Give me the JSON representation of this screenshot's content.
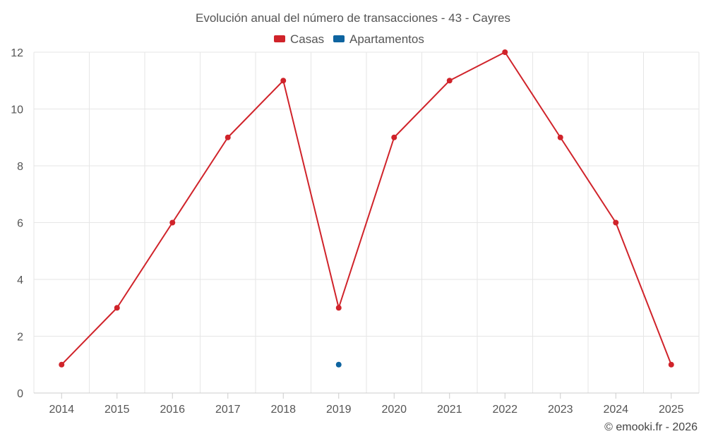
{
  "chart_data": {
    "type": "line",
    "title": "Evolución anual del número de transacciones - 43 - Cayres",
    "categories": [
      "2014",
      "2015",
      "2016",
      "2017",
      "2018",
      "2019",
      "2020",
      "2021",
      "2022",
      "2023",
      "2024",
      "2025"
    ],
    "ylim": [
      0,
      12
    ],
    "yticks": [
      0,
      2,
      4,
      6,
      8,
      10,
      12
    ],
    "grid": true,
    "legend_position": "top-center",
    "series": [
      {
        "name": "Casas",
        "color": "#d0232a",
        "values": [
          1,
          3,
          6,
          9,
          11,
          3,
          9,
          11,
          12,
          9,
          6,
          1
        ]
      },
      {
        "name": "Apartamentos",
        "color": "#0e64a0",
        "values": [
          null,
          null,
          null,
          null,
          null,
          1,
          null,
          null,
          null,
          null,
          null,
          null
        ]
      }
    ],
    "xlabel": "",
    "ylabel": ""
  },
  "credit": "© emooki.fr - 2026"
}
